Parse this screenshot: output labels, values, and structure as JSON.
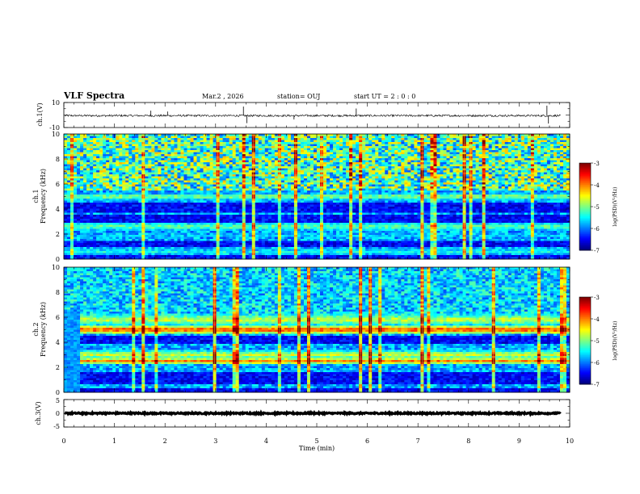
{
  "header": {
    "title": "VLF Spectra",
    "date": "Mar.2 , 2026",
    "station": "station= OUJ",
    "start": "start UT = 2 : 0 : 0"
  },
  "chart_data": {
    "type": "spectrogram",
    "xlabel": "Time (min)",
    "xlim": [
      0,
      10
    ],
    "xticks": [
      "0",
      "1",
      "2",
      "3",
      "4",
      "5",
      "6",
      "7",
      "8",
      "9",
      "10"
    ],
    "panels": [
      {
        "id": "ch1-waveform",
        "ylabel": "ch.1(V)",
        "ylim": [
          -10,
          10
        ],
        "yticks": [
          "10",
          "-10"
        ],
        "baseline": -0.5,
        "noise_amp": 0.8,
        "spikes": [
          {
            "t": 1.72,
            "v": 3.5
          },
          {
            "t": 3.55,
            "v": 6.8
          },
          {
            "t": 3.62,
            "v": -6.5
          },
          {
            "t": 5.78,
            "v": 5.2
          },
          {
            "t": 9.55,
            "v": 7.5
          },
          {
            "t": 9.58,
            "v": -6.8
          },
          {
            "t": 4.55,
            "v": -3.5
          },
          {
            "t": 2.05,
            "v": 2.8
          }
        ]
      },
      {
        "id": "ch1-spectrogram",
        "ylabel_top": "ch.1",
        "ylabel": "Frequency (kHz)",
        "ylim": [
          0,
          10
        ],
        "yticks": [
          "0",
          "2",
          "4",
          "6",
          "8",
          "10"
        ],
        "bands": [
          {
            "f": 5.0,
            "level": 0.55,
            "width": 0.25
          },
          {
            "f": 2.6,
            "level": 0.5,
            "width": 0.35
          },
          {
            "f": 1.9,
            "level": 0.35,
            "width": 0.15
          },
          {
            "f": 0.6,
            "level": 0.4,
            "width": 0.3
          }
        ],
        "dark_bands": [
          {
            "f": 4.1,
            "width": 0.35
          },
          {
            "f": 3.2,
            "width": 0.3
          },
          {
            "f": 1.2,
            "width": 0.3
          },
          {
            "f": 0.15,
            "width": 0.2
          }
        ],
        "top_activity": 0.55
      },
      {
        "id": "ch2-spectrogram",
        "ylabel_top": "ch.2",
        "ylabel": "Frequency (kHz)",
        "ylim": [
          0,
          10
        ],
        "yticks": [
          "0",
          "2",
          "4",
          "6",
          "8",
          "10"
        ],
        "bands": [
          {
            "f": 5.0,
            "level": 0.85,
            "width": 0.35
          },
          {
            "f": 5.8,
            "level": 0.6,
            "width": 0.5
          },
          {
            "f": 2.5,
            "level": 0.75,
            "width": 0.3
          },
          {
            "f": 3.0,
            "level": 0.6,
            "width": 0.4
          },
          {
            "f": 1.5,
            "level": 0.4,
            "width": 0.2
          }
        ],
        "dark_bands": [
          {
            "f": 4.2,
            "width": 0.3
          },
          {
            "f": 1.1,
            "width": 0.5
          },
          {
            "f": 0.1,
            "width": 0.2
          }
        ],
        "top_activity": 0.3
      },
      {
        "id": "ch3-waveform",
        "ylabel": "ch.3(V)",
        "ylim": [
          -5,
          5
        ],
        "yticks": [
          "5",
          "0",
          "-5"
        ],
        "baseline": 0,
        "noise_amp": 0.25,
        "spikes": []
      }
    ],
    "colorbar": {
      "label": "log(PSD)(V²/Hz)",
      "range": [
        -7,
        -3
      ],
      "ticks": [
        "-3",
        "-4",
        "-5",
        "-6",
        "-7"
      ]
    }
  }
}
